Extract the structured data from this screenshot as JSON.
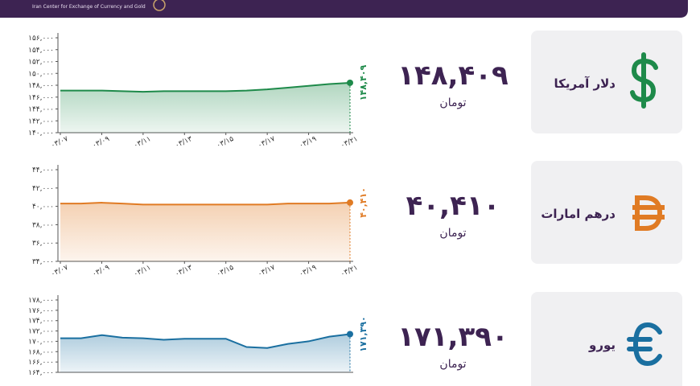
{
  "header": {
    "subtitle": "Iran Center for Exchange of Currency and Gold"
  },
  "cards": [
    {
      "name": "دلار آمریکا",
      "price": "۱۴۸,۴۰۹",
      "unit": "تومان"
    },
    {
      "name": "درهم امارات",
      "price": "۴۰,۴۱۰",
      "unit": "تومان"
    },
    {
      "name": "یورو",
      "price": "۱۷۱,۳۹۰",
      "unit": "تومان"
    }
  ],
  "chart_data": [
    {
      "type": "line",
      "color": "#1e8a4a",
      "categories": [
        "۰۳/۰۷",
        null,
        "۰۳/۰۹",
        null,
        "۰۳/۱۱",
        null,
        "۰۳/۱۳",
        null,
        "۰۳/۱۵",
        null,
        "۰۳/۱۷",
        null,
        "۰۳/۱۹",
        null,
        "۰۳/۲۱"
      ],
      "values": [
        147100,
        147100,
        147100,
        147000,
        146900,
        147000,
        147000,
        147000,
        147000,
        147100,
        147300,
        147600,
        147900,
        148200,
        148409
      ],
      "value_labels": [
        null,
        null,
        null,
        null,
        null,
        null,
        null,
        null,
        null,
        null,
        null,
        null,
        null,
        null,
        "۱۴۸,۴۰۹"
      ],
      "ylim": [
        140000,
        156000
      ],
      "yticks": [
        {
          "value": 140000,
          "label": "۱۴۰,۰۰۰"
        },
        {
          "value": 142000,
          "label": "۱۴۲,۰۰۰"
        },
        {
          "value": 144000,
          "label": "۱۴۴,۰۰۰"
        },
        {
          "value": 146000,
          "label": "۱۴۶,۰۰۰"
        },
        {
          "value": 148000,
          "label": "۱۴۸,۰۰۰"
        },
        {
          "value": 150000,
          "label": "۱۵۰,۰۰۰"
        },
        {
          "value": 152000,
          "label": "۱۵۲,۰۰۰"
        },
        {
          "value": 154000,
          "label": "۱۵۴,۰۰۰"
        },
        {
          "value": 156000,
          "label": "۱۵۶,۰۰۰"
        }
      ]
    },
    {
      "type": "line",
      "color": "#e07b24",
      "categories": [
        "۰۳/۰۷",
        null,
        "۰۳/۰۹",
        null,
        "۰۳/۱۱",
        null,
        "۰۳/۱۳",
        null,
        "۰۳/۱۵",
        null,
        "۰۳/۱۷",
        null,
        "۰۳/۱۹",
        null,
        "۰۳/۲۱"
      ],
      "values": [
        40300,
        40300,
        40400,
        40300,
        40200,
        40200,
        40200,
        40200,
        40200,
        40200,
        40200,
        40300,
        40300,
        40300,
        40410
      ],
      "value_labels": [
        null,
        null,
        null,
        null,
        null,
        null,
        null,
        null,
        null,
        null,
        null,
        null,
        null,
        null,
        "۴۰,۴۱۰"
      ],
      "ylim": [
        34000,
        44000
      ],
      "yticks": [
        {
          "value": 34000,
          "label": "۳۴,۰۰۰"
        },
        {
          "value": 36000,
          "label": "۳۶,۰۰۰"
        },
        {
          "value": 38000,
          "label": "۳۸,۰۰۰"
        },
        {
          "value": 40000,
          "label": "۴۰,۰۰۰"
        },
        {
          "value": 42000,
          "label": "۴۲,۰۰۰"
        },
        {
          "value": 44000,
          "label": "۴۴,۰۰۰"
        }
      ]
    },
    {
      "type": "line",
      "color": "#1a6fa0",
      "values": [
        170600,
        170600,
        171200,
        170700,
        170600,
        170300,
        170500,
        170500,
        170500,
        168900,
        168700,
        169500,
        170000,
        170900,
        171390
      ],
      "value_labels": [
        null,
        null,
        null,
        null,
        null,
        null,
        null,
        null,
        null,
        null,
        null,
        null,
        null,
        null,
        "۱۷۱,۳۹۰"
      ],
      "ylim": [
        164000,
        178000
      ],
      "yticks": [
        {
          "value": 164000,
          "label": "۱۶۴,۰۰۰"
        },
        {
          "value": 166000,
          "label": "۱۶۶,۰۰۰"
        },
        {
          "value": 168000,
          "label": "۱۶۸,۰۰۰"
        },
        {
          "value": 170000,
          "label": "۱۷۰,۰۰۰"
        },
        {
          "value": 172000,
          "label": "۱۷۲,۰۰۰"
        },
        {
          "value": 174000,
          "label": "۱۷۴,۰۰۰"
        },
        {
          "value": 176000,
          "label": "۱۷۶,۰۰۰"
        },
        {
          "value": 178000,
          "label": "۱۷۸,۰۰۰"
        }
      ]
    }
  ]
}
